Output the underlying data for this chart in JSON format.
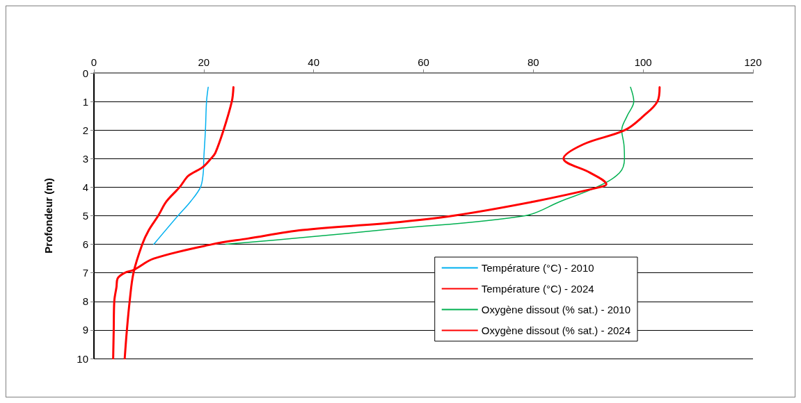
{
  "chart_data": {
    "type": "line",
    "ylabel": "Profondeur (m)",
    "xlim": [
      0,
      120
    ],
    "xticks": [
      0,
      20,
      40,
      60,
      80,
      100,
      120
    ],
    "ylim": [
      10,
      0
    ],
    "yticks": [
      0,
      1,
      2,
      3,
      4,
      5,
      6,
      7,
      8,
      9,
      10
    ],
    "grid": "y",
    "legend": "bottom right",
    "marker": "none",
    "line_style": "solid",
    "series": [
      {
        "name": "Température (°C) - 2010",
        "color": "#00b0f0",
        "x": [
          20.8,
          20.5,
          20.3,
          20.0,
          19.9,
          19.4,
          17.6,
          15.3,
          10.9
        ],
        "values": [
          0.5,
          1,
          2,
          3,
          3.5,
          4,
          4.5,
          5,
          6
        ]
      },
      {
        "name": "Température (°C) - 2024",
        "color": "#ff0000",
        "x": [
          25.4,
          25.1,
          23.6,
          22.1,
          21.3,
          19.8,
          17.2,
          15.6,
          13.2,
          11.7,
          10.0,
          8.8,
          7.2,
          6.5,
          6.0,
          5.6
        ],
        "values": [
          0.5,
          1,
          2,
          2.8,
          3,
          3.3,
          3.6,
          4,
          4.5,
          5,
          5.5,
          6,
          7,
          8,
          9,
          10
        ]
      },
      {
        "name": "Oxygène dissout (% sat.) - 2010",
        "color": "#00b050",
        "x": [
          97.7,
          98.3,
          97.1,
          96.1,
          96.5,
          96.6,
          95.7,
          91.5,
          84.9,
          78.5,
          54.0,
          38.8,
          24.0
        ],
        "values": [
          0.5,
          1,
          1.5,
          2,
          2.5,
          3,
          3.5,
          4,
          4.5,
          5,
          5.47,
          5.75,
          6
        ]
      },
      {
        "name": "Oxygène dissout (% sat.) - 2024",
        "color": "#ff0000",
        "x": [
          103.0,
          102.6,
          100.1,
          96.7,
          89.1,
          85.5,
          90.4,
          93.3,
          92.1,
          80.2,
          65.4,
          54.0,
          38.0,
          28.0,
          21.5,
          10.9,
          7.2,
          5.6,
          4.3,
          4.1,
          3.7,
          3.6,
          3.5
        ],
        "values": [
          0.5,
          1,
          1.5,
          2,
          2.5,
          3,
          3.5,
          3.9,
          4,
          4.5,
          5,
          5.25,
          5.5,
          5.8,
          6,
          6.5,
          6.9,
          7,
          7.2,
          7.5,
          8,
          9,
          10
        ]
      }
    ]
  }
}
